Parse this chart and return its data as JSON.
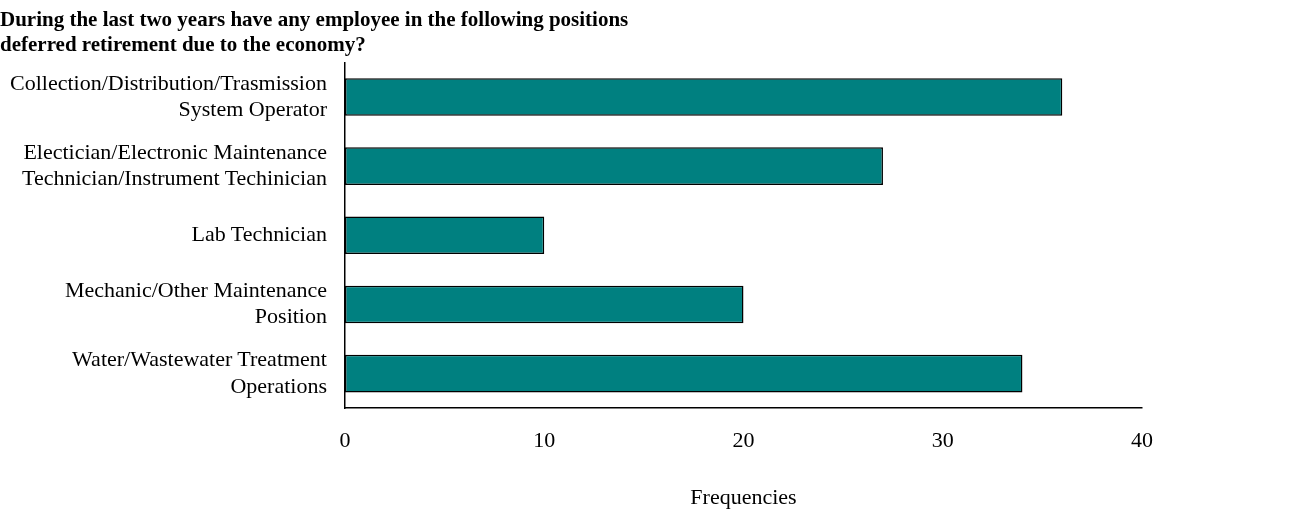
{
  "chart_data": {
    "type": "bar",
    "orientation": "horizontal",
    "title": "During the last two years have any employee in the following positions\ndeferred retirement due to the economy?",
    "xlabel": "Frequencies",
    "categories": [
      "Collection/Distribution/Trasmission\nSystem Operator",
      "Electician/Electronic Maintenance\nTechnician/Instrument Techinician",
      "Lab Technician",
      "Mechanic/Other Maintenance\nPosition",
      "Water/Wastewater Treatment\nOperations"
    ],
    "values": [
      36,
      27,
      10,
      20,
      34
    ],
    "color": "#008080",
    "xlim": [
      0,
      40
    ],
    "xticks": [
      0,
      10,
      20,
      30,
      40
    ],
    "grid": false,
    "legend": false
  }
}
